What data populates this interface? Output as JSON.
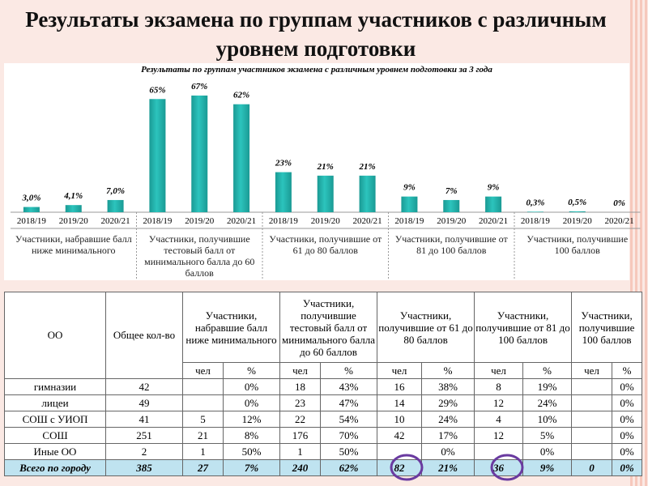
{
  "header": {
    "title": "Результаты экзамена по группам участников с различным уровнем подготовки"
  },
  "chart_data": {
    "type": "bar",
    "title": "Результаты по группам участников экзамена с различным уровнем подготовки за 3 года",
    "categories": [
      "2018/19",
      "2019/20",
      "2020/21",
      "2018/19",
      "2019/20",
      "2020/21",
      "2018/19",
      "2019/20",
      "2020/21",
      "2018/19",
      "2019/20",
      "2020/21",
      "2018/19",
      "2019/20",
      "2020/21"
    ],
    "groups": [
      "Участники, набравшие балл ниже минимального",
      "Участники, получившие тестовый балл от минимального балла до 60 баллов",
      "Участники, получившие от 61 до 80 баллов",
      "Участники, получившие от 81 до 100 баллов",
      "Участники, получившие 100 баллов"
    ],
    "values": [
      3.0,
      4.1,
      7.0,
      65,
      67,
      62,
      23,
      21,
      21,
      9,
      7,
      9,
      0.3,
      0.5,
      0
    ],
    "value_labels": [
      "3,0%",
      "4,1%",
      "7,0%",
      "65%",
      "67%",
      "62%",
      "23%",
      "21%",
      "21%",
      "9%",
      "7%",
      "9%",
      "0,3%",
      "0,5%",
      "0%"
    ],
    "color": "#2cc4bd"
  },
  "table": {
    "header": {
      "org": "ОО",
      "total": "Общее кол-во",
      "groups": [
        "Участники, набравшие балл ниже минимального",
        "Участники, получившие тестовый балл от минимального балла до 60 баллов",
        "Участники, получившие от 61 до 80 баллов",
        "Участники, получившие от 81 до 100 баллов",
        "Участники, получившие 100 баллов"
      ],
      "count": "чел",
      "percent": "%"
    },
    "rows": [
      [
        "гимназии",
        42,
        null,
        "0%",
        18,
        "43%",
        16,
        "38%",
        8,
        "19%",
        null,
        "0%"
      ],
      [
        "лицеи",
        49,
        null,
        "0%",
        23,
        "47%",
        14,
        "29%",
        12,
        "24%",
        null,
        "0%"
      ],
      [
        "СОШ с УИОП",
        41,
        5,
        "12%",
        22,
        "54%",
        10,
        "24%",
        4,
        "10%",
        null,
        "0%"
      ],
      [
        "СОШ",
        251,
        21,
        "8%",
        176,
        "70%",
        42,
        "17%",
        12,
        "5%",
        null,
        "0%"
      ],
      [
        "Иные ОО",
        2,
        1,
        "50%",
        1,
        "50%",
        null,
        "0%",
        null,
        "0%",
        null,
        "0%"
      ],
      [
        "Всего по городу",
        385,
        27,
        "7%",
        240,
        "62%",
        82,
        "21%",
        36,
        "9%",
        0,
        "0%"
      ]
    ]
  }
}
